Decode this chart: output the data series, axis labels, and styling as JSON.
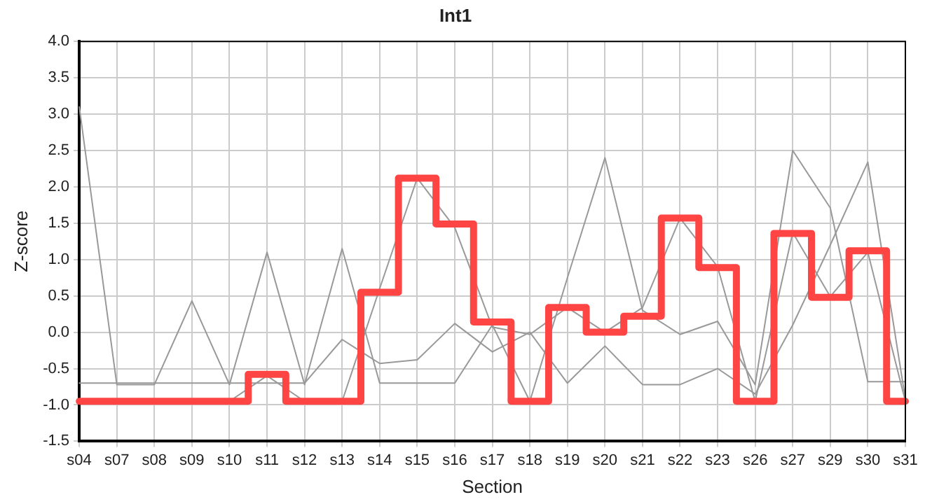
{
  "chart_data": {
    "type": "line",
    "title": "Int1",
    "xlabel": "Section",
    "ylabel": "Z-score",
    "categories": [
      "s04",
      "s07",
      "s08",
      "s09",
      "s10",
      "s11",
      "s12",
      "s13",
      "s14",
      "s15",
      "s16",
      "s17",
      "s18",
      "s19",
      "s20",
      "s21",
      "s22",
      "s23",
      "s26",
      "s27",
      "s29",
      "s30",
      "s31"
    ],
    "series": [
      {
        "color": "#999999",
        "values": [
          3.1,
          -0.72,
          -0.72,
          0.43,
          -0.72,
          1.1,
          -0.72,
          1.15,
          -0.7,
          -0.7,
          -0.7,
          0.1,
          -0.95,
          0.75,
          2.4,
          0.3,
          -0.03,
          0.15,
          -0.72,
          2.5,
          1.71,
          -0.68,
          -0.68
        ]
      },
      {
        "color": "#999999",
        "values": [
          -0.7,
          -0.7,
          -0.7,
          -0.7,
          -0.7,
          -0.7,
          -0.7,
          -0.1,
          -0.43,
          -0.38,
          0.12,
          -0.27,
          0.0,
          -0.7,
          -0.19,
          -0.72,
          -0.72,
          -0.5,
          -0.85,
          0.1,
          1.2,
          2.34,
          -0.92
        ]
      },
      {
        "color": "#999999",
        "values": [
          -0.95,
          -0.95,
          -0.95,
          -0.95,
          -0.95,
          -0.6,
          -0.95,
          -0.95,
          0.6,
          2.12,
          1.44,
          0.07,
          -0.03,
          0.34,
          0.0,
          0.34,
          1.57,
          0.9,
          -0.95,
          1.37,
          0.49,
          1.1,
          -0.95
        ]
      },
      {
        "type": "step",
        "color": "#ff4444",
        "values": [
          -0.95,
          -0.95,
          -0.95,
          -0.95,
          -0.95,
          -0.58,
          -0.95,
          -0.95,
          0.55,
          2.12,
          1.49,
          0.14,
          -0.95,
          0.34,
          0.0,
          0.22,
          1.57,
          0.89,
          -0.95,
          1.36,
          0.48,
          1.12,
          -0.95
        ]
      }
    ],
    "ylim": [
      -1.5,
      4
    ],
    "yticks": [
      -1.5,
      {
        "value": -1,
        "label": "-1.0"
      },
      -0.5,
      {
        "value": 0,
        "label": "0.0"
      },
      0.5,
      {
        "value": 1,
        "label": "1.0"
      },
      1.5,
      {
        "value": 2,
        "label": "2.0"
      },
      2.5,
      {
        "value": 3,
        "label": "3.0"
      },
      3.5,
      {
        "value": 4,
        "label": "4.0"
      }
    ],
    "grid": true,
    "legend": false,
    "marker": "none",
    "line_style": "solid"
  }
}
